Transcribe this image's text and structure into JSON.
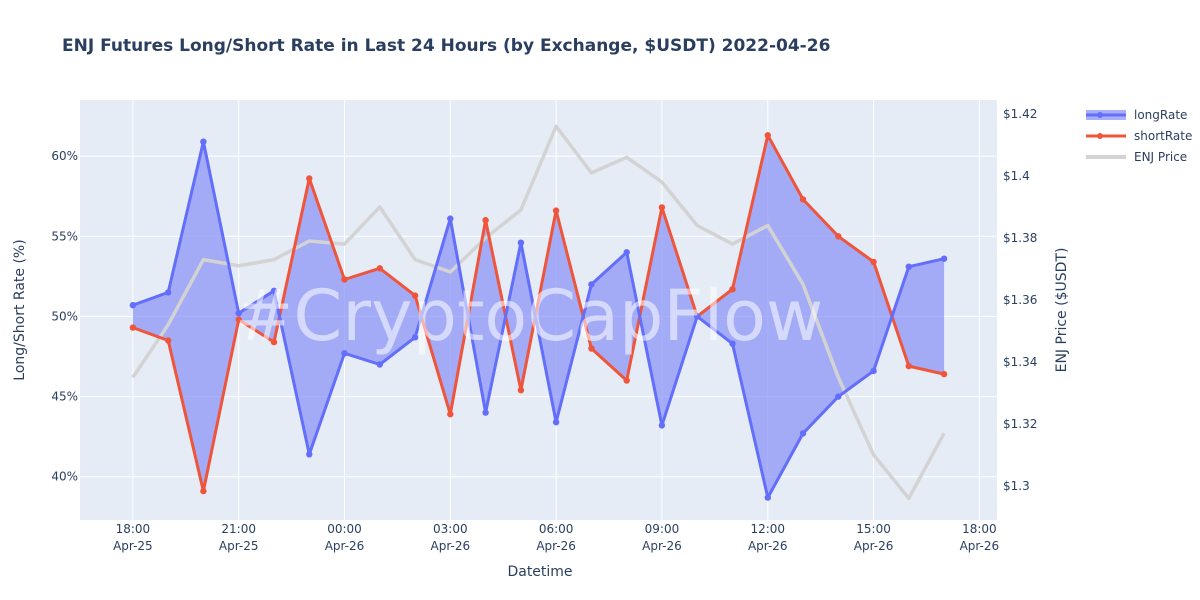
{
  "chart_data": {
    "type": "line",
    "title": "ENJ Futures Long/Short Rate in Last 24 Hours (by Exchange, $USDT) 2022-04-26",
    "xlabel": "Datetime",
    "ylabel": "Long/Short Rate (%)",
    "y2label": "ENJ Price ($USDT)",
    "watermark": "#CryptoCapFlow",
    "x": [
      "2022-04-25 18:00",
      "2022-04-25 19:00",
      "2022-04-25 20:00",
      "2022-04-25 21:00",
      "2022-04-25 22:00",
      "2022-04-25 23:00",
      "2022-04-26 00:00",
      "2022-04-26 01:00",
      "2022-04-26 02:00",
      "2022-04-26 03:00",
      "2022-04-26 04:00",
      "2022-04-26 05:00",
      "2022-04-26 06:00",
      "2022-04-26 07:00",
      "2022-04-26 08:00",
      "2022-04-26 09:00",
      "2022-04-26 10:00",
      "2022-04-26 11:00",
      "2022-04-26 12:00",
      "2022-04-26 13:00",
      "2022-04-26 14:00",
      "2022-04-26 15:00",
      "2022-04-26 16:00",
      "2022-04-26 17:00"
    ],
    "series": [
      {
        "name": "longRate",
        "axis": "y",
        "color": "#636efa",
        "fill": "tonexty",
        "values": [
          50.7,
          51.5,
          60.9,
          50.2,
          51.6,
          41.4,
          47.7,
          47.0,
          48.7,
          56.1,
          44.0,
          54.6,
          43.4,
          52.0,
          54.0,
          43.2,
          50.0,
          48.3,
          38.7,
          42.7,
          45.0,
          46.6,
          53.1,
          53.6
        ]
      },
      {
        "name": "shortRate",
        "axis": "y",
        "color": "#ef553b",
        "values": [
          49.3,
          48.5,
          39.1,
          49.8,
          48.4,
          58.6,
          52.3,
          53.0,
          51.3,
          43.9,
          56.0,
          45.4,
          56.6,
          48.0,
          46.0,
          56.8,
          50.0,
          51.7,
          61.3,
          57.3,
          55.0,
          53.4,
          46.9,
          46.4
        ]
      },
      {
        "name": "ENJ Price",
        "axis": "y2",
        "color": "#d3d3d3",
        "values": [
          1.335,
          1.352,
          1.373,
          1.371,
          1.373,
          1.379,
          1.378,
          1.39,
          1.373,
          1.369,
          1.38,
          1.389,
          1.416,
          1.401,
          1.406,
          1.398,
          1.384,
          1.378,
          1.384,
          1.365,
          1.335,
          1.31,
          1.296,
          1.317
        ]
      }
    ],
    "x_ticks": [
      {
        "line1": "18:00",
        "line2": "Apr-25",
        "at": "2022-04-25 18:00"
      },
      {
        "line1": "21:00",
        "line2": "Apr-25",
        "at": "2022-04-25 21:00"
      },
      {
        "line1": "00:00",
        "line2": "Apr-26",
        "at": "2022-04-26 00:00"
      },
      {
        "line1": "03:00",
        "line2": "Apr-26",
        "at": "2022-04-26 03:00"
      },
      {
        "line1": "06:00",
        "line2": "Apr-26",
        "at": "2022-04-26 06:00"
      },
      {
        "line1": "09:00",
        "line2": "Apr-26",
        "at": "2022-04-26 09:00"
      },
      {
        "line1": "12:00",
        "line2": "Apr-26",
        "at": "2022-04-26 12:00"
      },
      {
        "line1": "15:00",
        "line2": "Apr-26",
        "at": "2022-04-26 15:00"
      },
      {
        "line1": "18:00",
        "line2": "Apr-26",
        "at": "2022-04-26 18:00"
      }
    ],
    "xlim": [
      "2022-04-25 16:30",
      "2022-04-26 18:30"
    ],
    "y_ticks": [
      40,
      45,
      50,
      55,
      60
    ],
    "y_tick_labels": [
      "40%",
      "45%",
      "50%",
      "55%",
      "60%"
    ],
    "ylim": [
      37.3,
      63.5
    ],
    "y2_ticks": [
      1.3,
      1.32,
      1.34,
      1.36,
      1.38,
      1.4,
      1.42
    ],
    "y2_tick_labels": [
      "$1.3",
      "$1.32",
      "$1.34",
      "$1.36",
      "$1.38",
      "$1.4",
      "$1.42"
    ],
    "y2lim": [
      1.289,
      1.4245
    ],
    "legend": [
      "longRate",
      "shortRate",
      "ENJ Price"
    ],
    "legend_position": "top-right",
    "fill_color": "#8c96f5",
    "plot_background": "#e5ecf6",
    "grid": true
  }
}
